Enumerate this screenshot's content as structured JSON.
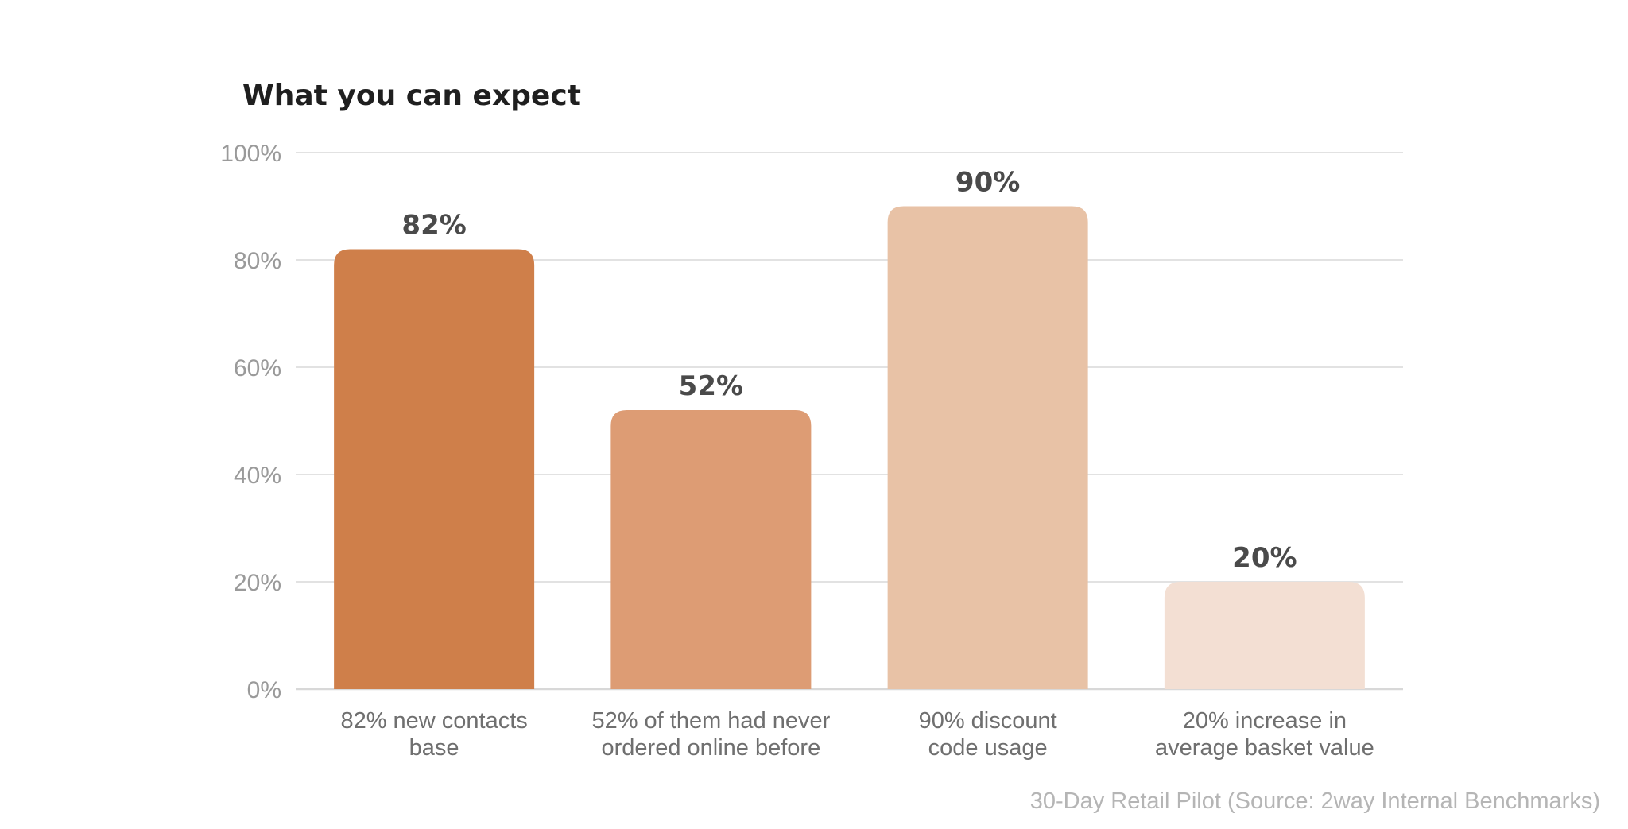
{
  "chart_data": {
    "type": "bar",
    "title": "What you can expect",
    "categories": [
      [
        "82% new contacts",
        "base"
      ],
      [
        "52% of them had never",
        "ordered online before"
      ],
      [
        "90% discount",
        "code usage"
      ],
      [
        "20% increase in",
        "average basket value"
      ]
    ],
    "values": [
      82,
      52,
      90,
      20
    ],
    "data_labels": [
      "82%",
      "52%",
      "90%",
      "20%"
    ],
    "bar_colors": [
      "#CF7F4A",
      "#DD9C74",
      "#E8C2A6",
      "#F3DFD3"
    ],
    "ylim": [
      0,
      100
    ],
    "yticks": [
      0,
      20,
      40,
      60,
      80,
      100
    ],
    "ytick_labels": [
      "0%",
      "20%",
      "40%",
      "60%",
      "80%",
      "100%"
    ],
    "grid": true,
    "legend": "none",
    "source": "30-Day Retail Pilot (Source: 2way Internal Benchmarks)"
  }
}
